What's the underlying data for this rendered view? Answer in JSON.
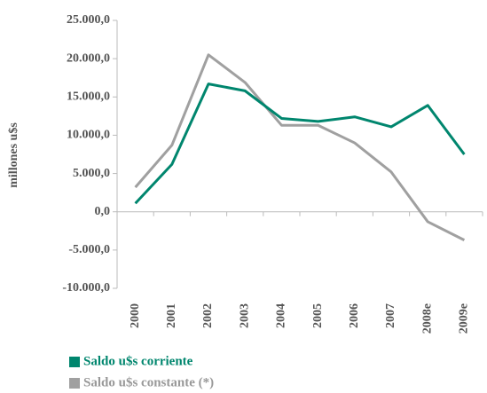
{
  "chart_data": {
    "type": "line",
    "y_label": "millones u$s",
    "categories": [
      "2000",
      "2001",
      "2002",
      "2003",
      "2004",
      "2005",
      "2006",
      "2007",
      "2008e",
      "2009e"
    ],
    "series": [
      {
        "name": "Saldo u$s corriente",
        "color": "#00866e",
        "values": [
          1100,
          6200,
          16700,
          15800,
          12200,
          11800,
          12400,
          11100,
          13900,
          7500
        ]
      },
      {
        "name": "Saldo u$s constante (*)",
        "color": "#a0a0a0",
        "values": [
          3200,
          8700,
          20500,
          16900,
          11300,
          11300,
          9000,
          5200,
          -1300,
          -3700
        ]
      }
    ],
    "ylim": [
      -10000,
      25000
    ],
    "yticks": [
      {
        "value": -10000,
        "label": "-10.000,0"
      },
      {
        "value": -5000,
        "label": "-5.000,0"
      },
      {
        "value": 0,
        "label": "0,0"
      },
      {
        "value": 5000,
        "label": "5.000,0"
      },
      {
        "value": 10000,
        "label": "10.000,0"
      },
      {
        "value": 15000,
        "label": "15.000,0"
      },
      {
        "value": 20000,
        "label": "20.000,0"
      },
      {
        "value": 25000,
        "label": "25.000,0"
      }
    ]
  }
}
